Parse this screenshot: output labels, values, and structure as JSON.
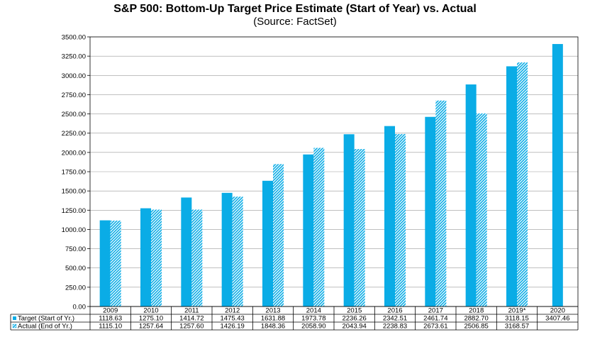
{
  "chart_data": {
    "type": "bar",
    "title": "S&P 500: Bottom-Up Target Price Estimate (Start of Year) vs. Actual",
    "subtitle": "(Source: FactSet)",
    "categories": [
      "2009",
      "2010",
      "2011",
      "2012",
      "2013",
      "2014",
      "2015",
      "2016",
      "2017",
      "2018",
      "2019*",
      "2020"
    ],
    "series": [
      {
        "name": "Target (Start of Yr.)",
        "color": "#0AACE6",
        "pattern": "solid",
        "values": [
          1118.63,
          1275.1,
          1414.72,
          1475.43,
          1631.88,
          1973.78,
          2236.26,
          2342.51,
          2461.74,
          2882.7,
          3118.15,
          3407.46
        ],
        "labels": [
          "1118.63",
          "1275.10",
          "1414.72",
          "1475.43",
          "1631.88",
          "1973.78",
          "2236.26",
          "2342.51",
          "2461.74",
          "2882.70",
          "3118.15",
          "3407.46"
        ]
      },
      {
        "name": "Actual (End of Yr.)",
        "color": "#0AACE6",
        "pattern": "diagonal-hatch",
        "values": [
          1115.1,
          1257.64,
          1257.6,
          1426.19,
          1848.36,
          2058.9,
          2043.94,
          2238.83,
          2673.61,
          2506.85,
          3168.57,
          null
        ],
        "labels": [
          "1115.10",
          "1257.64",
          "1257.60",
          "1426.19",
          "1848.36",
          "2058.90",
          "2043.94",
          "2238.83",
          "2673.61",
          "2506.85",
          "3168.57",
          ""
        ]
      }
    ],
    "ylim": [
      0,
      3500
    ],
    "ytick_step": 250,
    "ytick_labels": [
      "0.00",
      "250.00",
      "500.00",
      "750.00",
      "1000.00",
      "1250.00",
      "1500.00",
      "1750.00",
      "2000.00",
      "2250.00",
      "2500.00",
      "2750.00",
      "3000.00",
      "3250.00",
      "3500.00"
    ],
    "grid": true,
    "legend": "data-table-below"
  }
}
